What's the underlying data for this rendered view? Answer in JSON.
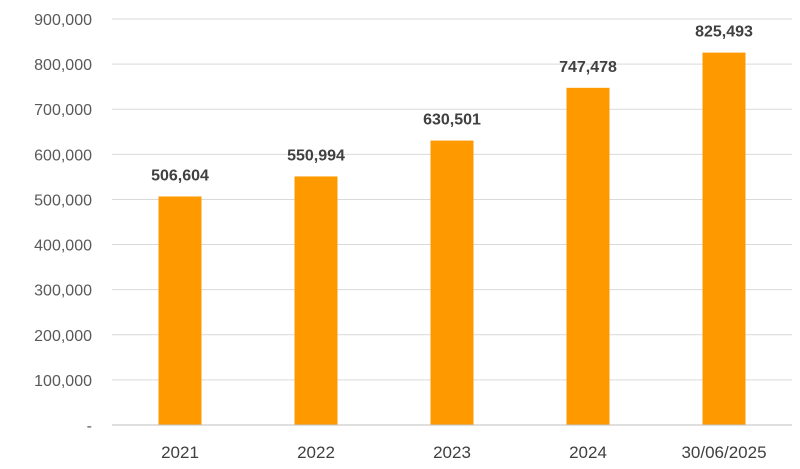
{
  "chart_data": {
    "type": "bar",
    "title": "",
    "xlabel": "",
    "ylabel": "",
    "categories": [
      "2021",
      "2022",
      "2023",
      "2024",
      "30/06/2025"
    ],
    "values": [
      506604,
      550994,
      630501,
      747478,
      825493
    ],
    "value_labels": [
      "506,604",
      "550,994",
      "630,501",
      "747,478",
      "825,493"
    ],
    "ylim": [
      0,
      900000
    ],
    "yticks": [
      0,
      100000,
      200000,
      300000,
      400000,
      500000,
      600000,
      700000,
      800000,
      900000
    ],
    "ytick_labels": [
      "-",
      "100,000",
      "200,000",
      "300,000",
      "400,000",
      "500,000",
      "600,000",
      "700,000",
      "800,000",
      "900,000"
    ],
    "grid": true,
    "legend": "none",
    "bar_color": "#FF9900"
  }
}
